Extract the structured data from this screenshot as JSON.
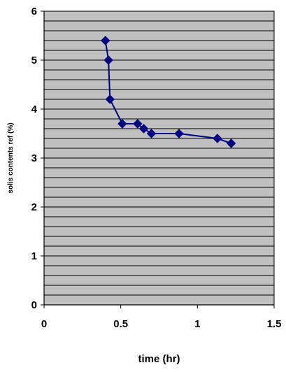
{
  "chart_data": {
    "type": "scatter",
    "title": "",
    "xlabel": "time (hr)",
    "ylabel": "solis contents ref (%)",
    "xlim": [
      0,
      1.5
    ],
    "ylim": [
      0,
      6
    ],
    "x_ticks": [
      "0",
      "0.5",
      "1",
      "1.5"
    ],
    "y_ticks": [
      "0",
      "1",
      "2",
      "3",
      "4",
      "5",
      "6"
    ],
    "grid": "horizontal",
    "legend": "none",
    "marker": "diamond",
    "lines_connect_points": true,
    "colors": {
      "plot_background": "#c0c0c0",
      "gridline": "#000000",
      "series": "#000080"
    },
    "series": [
      {
        "x": [
          0.4,
          0.42,
          0.43,
          0.51,
          0.61,
          0.65,
          0.7,
          0.88,
          1.13,
          1.22
        ],
        "y": [
          5.4,
          5.0,
          4.2,
          3.7,
          3.7,
          3.6,
          3.5,
          3.5,
          3.4,
          3.3
        ]
      }
    ]
  }
}
